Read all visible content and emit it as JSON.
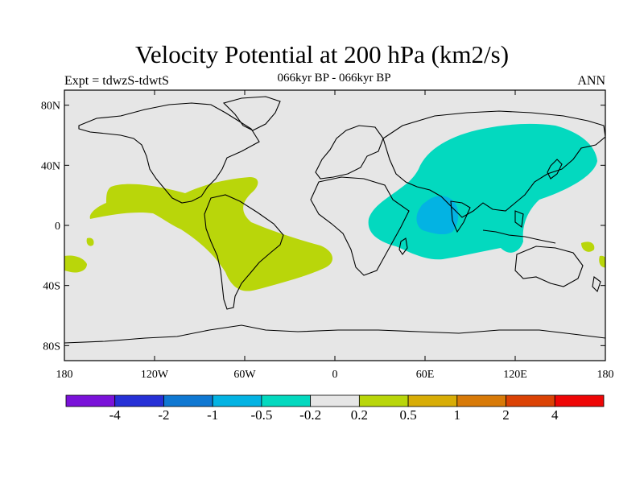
{
  "title": "Velocity Potential at 200 hPa (km2/s)",
  "subtitle": "066kyr BP - 066kyr BP",
  "left_label": "Expt = tdwzS-tdwtS",
  "right_label": "ANN",
  "map": {
    "projection": "cylindrical equidistant",
    "lon_range": [
      -180,
      180
    ],
    "lat_range": [
      -90,
      90
    ],
    "background_color": "#e6e6e6",
    "coastline_color": "#000000",
    "lat_ticks": [
      "80N",
      "40N",
      "0",
      "40S",
      "80S"
    ],
    "lon_ticks": [
      "180",
      "120W",
      "60W",
      "0",
      "60E",
      "120E",
      "180"
    ]
  },
  "colorbar": {
    "colors": [
      "#7a12d9",
      "#2630d6",
      "#0f78d2",
      "#03b3e3",
      "#03d9bf",
      "#e6e6e6",
      "#b9d60a",
      "#d8ad06",
      "#d87a08",
      "#db4205",
      "#ee0606"
    ],
    "labels": [
      "-4",
      "-2",
      "-1",
      "-0.5",
      "-0.2",
      "0.2",
      "0.5",
      "1",
      "2",
      "4"
    ]
  },
  "regions": [
    {
      "name": "positive-americas",
      "level": "0.2 to 0.5",
      "color": "#b9d60a"
    },
    {
      "name": "negative-asia-indian-ocean",
      "level": "-0.5 to -0.2",
      "color": "#03d9bf"
    },
    {
      "name": "negative-arabian-sea",
      "level": "-1 to -0.5",
      "color": "#03b3e3"
    }
  ]
}
